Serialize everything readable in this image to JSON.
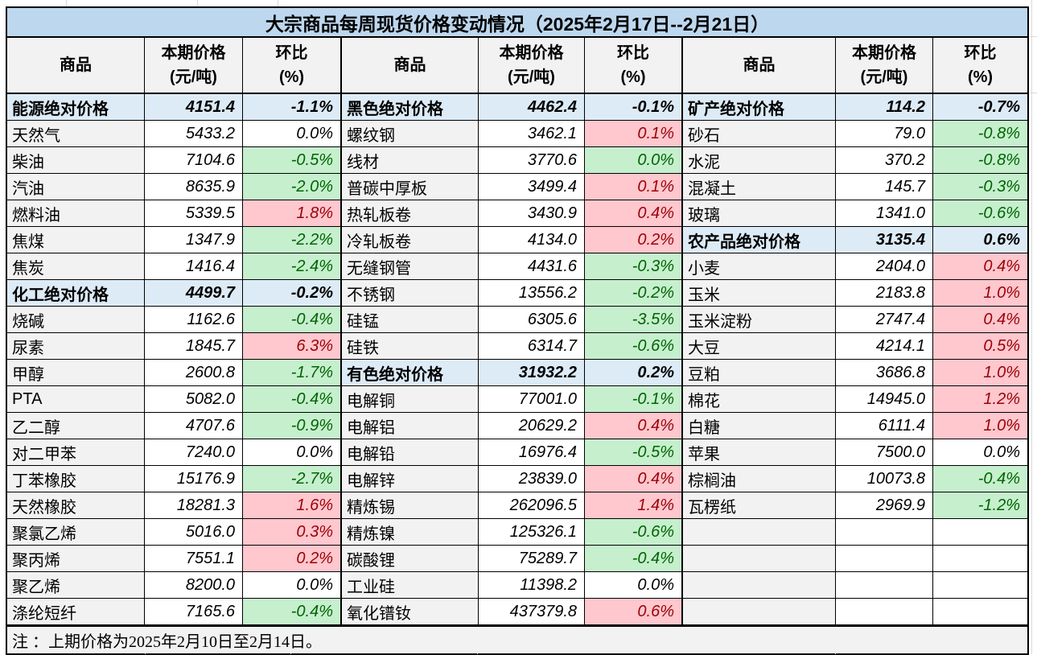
{
  "title": "大宗商品每周现货价格变动情况（2025年2月17日--2月21日）",
  "header": {
    "commodity": "商品",
    "price": "本期价格\n(元/吨)",
    "change": "环比\n(%)"
  },
  "note": "注 ：上期价格为2025年2月10日至2月14日。",
  "colors": {
    "title_bg": "#BDD7EE",
    "section_bg": "#DDEBF7",
    "label_bg": "#F2F2F2",
    "up_bg": "#FFC7CE",
    "up_text": "#9C0006",
    "down_bg": "#C6EFCE",
    "down_text": "#006400",
    "border": "#000000"
  },
  "groups": [
    {
      "rows": [
        {
          "name": "能源绝对价格",
          "price": "4151.4",
          "chg": "-1.1%",
          "style": "section"
        },
        {
          "name": "天然气",
          "price": "5433.2",
          "chg": "0.0%",
          "style": "none"
        },
        {
          "name": "柴油",
          "price": "7104.6",
          "chg": "-0.5%",
          "style": "green"
        },
        {
          "name": "汽油",
          "price": "8635.9",
          "chg": "-2.0%",
          "style": "green"
        },
        {
          "name": "燃料油",
          "price": "5339.5",
          "chg": "1.8%",
          "style": "red"
        },
        {
          "name": "焦煤",
          "price": "1347.9",
          "chg": "-2.2%",
          "style": "green"
        },
        {
          "name": "焦炭",
          "price": "1416.4",
          "chg": "-2.4%",
          "style": "green"
        },
        {
          "name": "化工绝对价格",
          "price": "4499.7",
          "chg": "-0.2%",
          "style": "section"
        },
        {
          "name": "烧碱",
          "price": "1162.6",
          "chg": "-0.4%",
          "style": "green"
        },
        {
          "name": "尿素",
          "price": "1845.7",
          "chg": "6.3%",
          "style": "red"
        },
        {
          "name": "甲醇",
          "price": "2600.8",
          "chg": "-1.7%",
          "style": "green"
        },
        {
          "name": "PTA",
          "price": "5082.0",
          "chg": "-0.4%",
          "style": "green"
        },
        {
          "name": "乙二醇",
          "price": "4707.6",
          "chg": "-0.9%",
          "style": "green"
        },
        {
          "name": "对二甲苯",
          "price": "7240.0",
          "chg": "0.0%",
          "style": "none"
        },
        {
          "name": "丁苯橡胶",
          "price": "15176.9",
          "chg": "-2.7%",
          "style": "green"
        },
        {
          "name": "天然橡胶",
          "price": "18281.3",
          "chg": "1.6%",
          "style": "red"
        },
        {
          "name": "聚氯乙烯",
          "price": "5016.0",
          "chg": "0.3%",
          "style": "red"
        },
        {
          "name": "聚丙烯",
          "price": "7551.1",
          "chg": "0.2%",
          "style": "red"
        },
        {
          "name": "聚乙烯",
          "price": "8200.0",
          "chg": "0.0%",
          "style": "none"
        },
        {
          "name": "涤纶短纤",
          "price": "7165.6",
          "chg": "-0.4%",
          "style": "green"
        }
      ]
    },
    {
      "rows": [
        {
          "name": "黑色绝对价格",
          "price": "4462.4",
          "chg": "-0.1%",
          "style": "section"
        },
        {
          "name": "螺纹钢",
          "price": "3462.1",
          "chg": "0.1%",
          "style": "red"
        },
        {
          "name": "线材",
          "price": "3770.6",
          "chg": "0.0%",
          "style": "green"
        },
        {
          "name": "普碳中厚板",
          "price": "3499.4",
          "chg": "0.1%",
          "style": "red"
        },
        {
          "name": "热轧板卷",
          "price": "3430.9",
          "chg": "0.4%",
          "style": "red"
        },
        {
          "name": "冷轧板卷",
          "price": "4134.0",
          "chg": "0.2%",
          "style": "red"
        },
        {
          "name": "无缝钢管",
          "price": "4431.6",
          "chg": "-0.3%",
          "style": "green"
        },
        {
          "name": "不锈钢",
          "price": "13556.2",
          "chg": "-0.2%",
          "style": "green"
        },
        {
          "name": "硅锰",
          "price": "6305.6",
          "chg": "-3.5%",
          "style": "green"
        },
        {
          "name": "硅铁",
          "price": "6314.7",
          "chg": "-0.6%",
          "style": "green"
        },
        {
          "name": "有色绝对价格",
          "price": "31932.2",
          "chg": "0.2%",
          "style": "section"
        },
        {
          "name": "电解铜",
          "price": "77001.0",
          "chg": "-0.1%",
          "style": "green"
        },
        {
          "name": "电解铝",
          "price": "20629.2",
          "chg": "0.4%",
          "style": "red"
        },
        {
          "name": "电解铅",
          "price": "16976.4",
          "chg": "-0.5%",
          "style": "green"
        },
        {
          "name": "电解锌",
          "price": "23839.0",
          "chg": "0.4%",
          "style": "red"
        },
        {
          "name": "精炼锡",
          "price": "262096.5",
          "chg": "1.4%",
          "style": "red"
        },
        {
          "name": "精炼镍",
          "price": "125326.1",
          "chg": "-0.6%",
          "style": "green"
        },
        {
          "name": "碳酸锂",
          "price": "75289.7",
          "chg": "-0.4%",
          "style": "green"
        },
        {
          "name": "工业硅",
          "price": "11398.2",
          "chg": "0.0%",
          "style": "none"
        },
        {
          "name": "氧化镨钕",
          "price": "437379.8",
          "chg": "0.6%",
          "style": "red"
        }
      ]
    },
    {
      "rows": [
        {
          "name": "矿产绝对价格",
          "price": "114.2",
          "chg": "-0.7%",
          "style": "section"
        },
        {
          "name": "砂石",
          "price": "79.0",
          "chg": "-0.8%",
          "style": "green"
        },
        {
          "name": "水泥",
          "price": "370.2",
          "chg": "-0.8%",
          "style": "green"
        },
        {
          "name": "混凝土",
          "price": "145.7",
          "chg": "-0.3%",
          "style": "green"
        },
        {
          "name": "玻璃",
          "price": "1341.0",
          "chg": "-0.6%",
          "style": "green"
        },
        {
          "name": "农产品绝对价格",
          "price": "3135.4",
          "chg": "0.6%",
          "style": "section"
        },
        {
          "name": "小麦",
          "price": "2404.0",
          "chg": "0.4%",
          "style": "red"
        },
        {
          "name": "玉米",
          "price": "2183.8",
          "chg": "1.0%",
          "style": "red"
        },
        {
          "name": "玉米淀粉",
          "price": "2747.4",
          "chg": "0.4%",
          "style": "red"
        },
        {
          "name": "大豆",
          "price": "4214.1",
          "chg": "0.5%",
          "style": "red"
        },
        {
          "name": "豆粕",
          "price": "3686.8",
          "chg": "1.0%",
          "style": "red"
        },
        {
          "name": "棉花",
          "price": "14945.0",
          "chg": "1.2%",
          "style": "red"
        },
        {
          "name": "白糖",
          "price": "6111.4",
          "chg": "1.0%",
          "style": "red"
        },
        {
          "name": "苹果",
          "price": "7500.0",
          "chg": "0.0%",
          "style": "none"
        },
        {
          "name": "棕榈油",
          "price": "10073.8",
          "chg": "-0.4%",
          "style": "green"
        },
        {
          "name": "瓦楞纸",
          "price": "2969.9",
          "chg": "-1.2%",
          "style": "green"
        },
        {
          "name": "",
          "price": "",
          "chg": "",
          "style": "empty"
        },
        {
          "name": "",
          "price": "",
          "chg": "",
          "style": "empty"
        },
        {
          "name": "",
          "price": "",
          "chg": "",
          "style": "empty"
        },
        {
          "name": "",
          "price": "",
          "chg": "",
          "style": "empty"
        }
      ]
    }
  ]
}
